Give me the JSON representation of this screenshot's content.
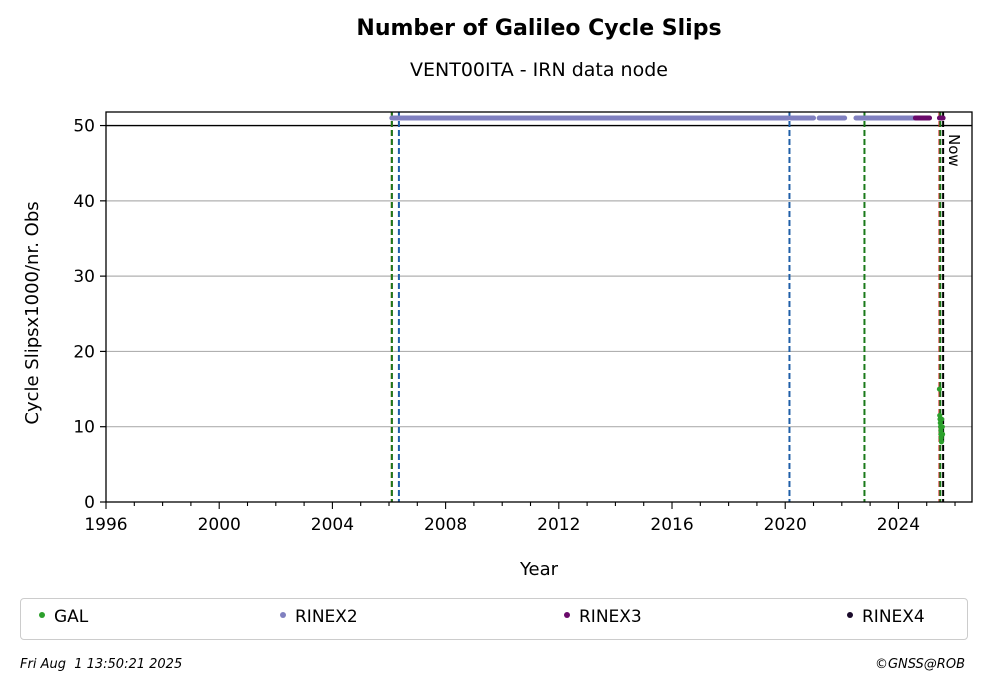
{
  "chart_data": {
    "type": "scatter",
    "title": "Number of Galileo Cycle Slips",
    "subtitle": "VENT00ITA - IRN data node",
    "xlabel": "Year",
    "ylabel": "Cycle Slipsx1000/nr. Obs",
    "xlim": [
      1996,
      2026.6
    ],
    "ylim": [
      0,
      51.8
    ],
    "xticks": [
      1996,
      2000,
      2004,
      2008,
      2012,
      2016,
      2020,
      2024
    ],
    "yticks": [
      0,
      10,
      20,
      30,
      40,
      50
    ],
    "grid": "horizontal",
    "cap_line": 50,
    "now_label": "Now",
    "now_x": 2025.58,
    "vlines": [
      {
        "x": 2006.1,
        "color": "#d62728",
        "style": "dashed"
      },
      {
        "x": 2006.1,
        "color": "#1a7a1a",
        "style": "dashed"
      },
      {
        "x": 2006.35,
        "color": "#1f5fa8",
        "style": "dashed"
      },
      {
        "x": 2020.15,
        "color": "#1f5fa8",
        "style": "dashed"
      },
      {
        "x": 2022.8,
        "color": "#1a7a1a",
        "style": "dashed"
      },
      {
        "x": 2025.45,
        "color": "#d62728",
        "style": "dashed"
      },
      {
        "x": 2025.48,
        "color": "#1a7a1a",
        "style": "dashed"
      }
    ],
    "series": [
      {
        "name": "GAL",
        "color": "#2ca02c",
        "points": [
          [
            2025.45,
            15.0
          ],
          [
            2025.46,
            11.5
          ],
          [
            2025.47,
            11.0
          ],
          [
            2025.48,
            10.5
          ],
          [
            2025.49,
            10.0
          ],
          [
            2025.5,
            9.5
          ],
          [
            2025.5,
            9.0
          ],
          [
            2025.51,
            8.5
          ],
          [
            2025.52,
            8.0
          ],
          [
            2025.53,
            11.0
          ],
          [
            2025.55,
            10.0
          ],
          [
            2025.56,
            9.0
          ]
        ]
      },
      {
        "name": "RINEX2",
        "color": "#8080c0",
        "segments": [
          [
            2006.1,
            2020.1
          ],
          [
            2020.2,
            2021.0
          ],
          [
            2021.2,
            2022.1
          ],
          [
            2022.5,
            2024.6
          ]
        ],
        "y": 51
      },
      {
        "name": "RINEX3",
        "color": "#6a0a6a",
        "segments": [
          [
            2024.6,
            2025.1
          ],
          [
            2025.45,
            2025.58
          ]
        ],
        "y": 51
      },
      {
        "name": "RINEX4",
        "color": "#1a0a2a",
        "segments": [],
        "y": 51
      }
    ]
  },
  "legend": [
    {
      "label": "GAL",
      "color": "#2ca02c"
    },
    {
      "label": "RINEX2",
      "color": "#8080c0"
    },
    {
      "label": "RINEX3",
      "color": "#6a0a6a"
    },
    {
      "label": "RINEX4",
      "color": "#1a0a2a"
    }
  ],
  "footer": {
    "date": "Fri Aug  1 13:50:21 2025",
    "copyright": "©GNSS@ROB"
  }
}
